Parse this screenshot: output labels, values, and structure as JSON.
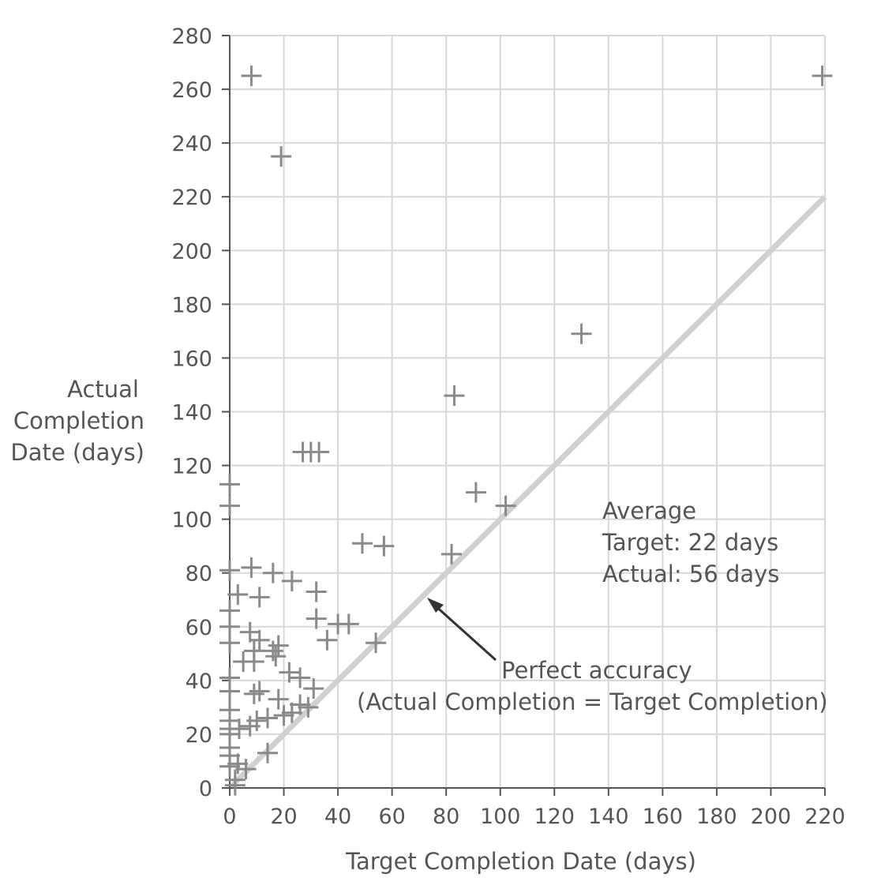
{
  "chart_data": {
    "type": "scatter",
    "title": "",
    "xlabel": "Target Completion Date (days)",
    "ylabel_lines": [
      "Actual",
      "Completion",
      "Date (days)"
    ],
    "xlim": [
      0,
      220
    ],
    "ylim": [
      0,
      280
    ],
    "xticks": [
      0,
      20,
      40,
      60,
      80,
      100,
      120,
      140,
      160,
      180,
      200,
      220
    ],
    "yticks": [
      0,
      20,
      40,
      60,
      80,
      100,
      120,
      140,
      160,
      180,
      200,
      220,
      240,
      260,
      280
    ],
    "grid": true,
    "marker": "plus",
    "marker_color": "#8a8a8a",
    "reference_line": {
      "from": [
        0,
        0
      ],
      "to": [
        220,
        220
      ],
      "color": "#d0d0d0"
    },
    "annotations": {
      "average_lines": [
        "Average",
        "Target: 22 days",
        "Actual: 56 days"
      ],
      "perfect_lines": [
        "Perfect accuracy",
        "(Actual Completion = Target Completion)"
      ]
    },
    "points": [
      [
        8,
        265
      ],
      [
        19,
        235
      ],
      [
        219,
        265
      ],
      [
        130,
        169
      ],
      [
        83,
        146
      ],
      [
        27,
        125
      ],
      [
        30,
        125
      ],
      [
        33,
        125
      ],
      [
        91,
        110
      ],
      [
        102,
        105
      ],
      [
        82,
        87
      ],
      [
        49,
        91
      ],
      [
        57,
        90
      ],
      [
        0,
        113
      ],
      [
        0,
        105
      ],
      [
        8,
        82
      ],
      [
        16,
        80
      ],
      [
        3,
        72
      ],
      [
        11,
        71
      ],
      [
        23,
        77
      ],
      [
        32,
        73
      ],
      [
        32,
        63
      ],
      [
        40,
        61
      ],
      [
        44,
        61
      ],
      [
        36,
        55
      ],
      [
        54,
        54
      ],
      [
        7.5,
        58
      ],
      [
        11,
        55
      ],
      [
        18,
        53
      ],
      [
        16,
        51
      ],
      [
        9,
        51
      ],
      [
        5,
        47
      ],
      [
        9,
        47
      ],
      [
        17,
        49
      ],
      [
        22,
        43
      ],
      [
        26,
        41
      ],
      [
        31,
        37
      ],
      [
        9,
        35
      ],
      [
        11,
        36
      ],
      [
        18,
        33
      ],
      [
        26,
        31
      ],
      [
        29,
        30
      ],
      [
        23,
        28
      ],
      [
        20,
        27
      ],
      [
        14,
        26
      ],
      [
        10,
        25
      ],
      [
        7.5,
        23
      ],
      [
        3.5,
        22
      ],
      [
        14,
        13
      ],
      [
        3,
        9
      ],
      [
        6,
        7
      ],
      [
        2,
        3
      ],
      [
        2,
        1
      ],
      [
        0,
        81
      ],
      [
        0,
        66
      ],
      [
        0,
        60
      ],
      [
        0,
        54
      ],
      [
        0,
        41
      ],
      [
        0,
        36
      ],
      [
        0,
        29
      ],
      [
        0,
        25
      ],
      [
        0,
        22
      ],
      [
        0,
        20
      ],
      [
        0,
        15
      ],
      [
        0,
        12
      ],
      [
        0,
        8
      ]
    ]
  }
}
